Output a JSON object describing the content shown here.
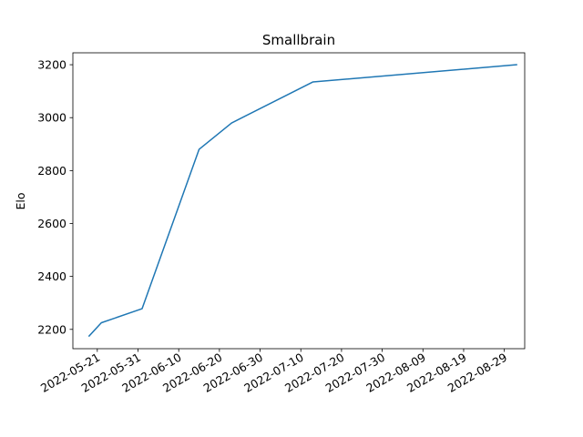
{
  "chart_data": {
    "type": "line",
    "title": "Smallbrain",
    "xlabel": "",
    "ylabel": "Elo",
    "x_type": "date",
    "xlim": [
      "2022-05-15",
      "2022-09-03"
    ],
    "ylim": [
      2127,
      3245
    ],
    "x_ticks": [
      "2022-05-21",
      "2022-05-31",
      "2022-06-10",
      "2022-06-20",
      "2022-06-30",
      "2022-07-10",
      "2022-07-20",
      "2022-07-30",
      "2022-08-09",
      "2022-08-19",
      "2022-08-29"
    ],
    "y_ticks": [
      2200,
      2400,
      2600,
      2800,
      3000,
      3200
    ],
    "grid": false,
    "legend": "none",
    "colors": {
      "line": "#1f77b4"
    },
    "series": [
      {
        "x": [
          "2022-05-19",
          "2022-05-22",
          "2022-06-01",
          "2022-06-15",
          "2022-06-23",
          "2022-07-13",
          "2022-09-01"
        ],
        "values": [
          2175,
          2225,
          2278,
          2880,
          2980,
          3135,
          3200
        ]
      }
    ]
  }
}
